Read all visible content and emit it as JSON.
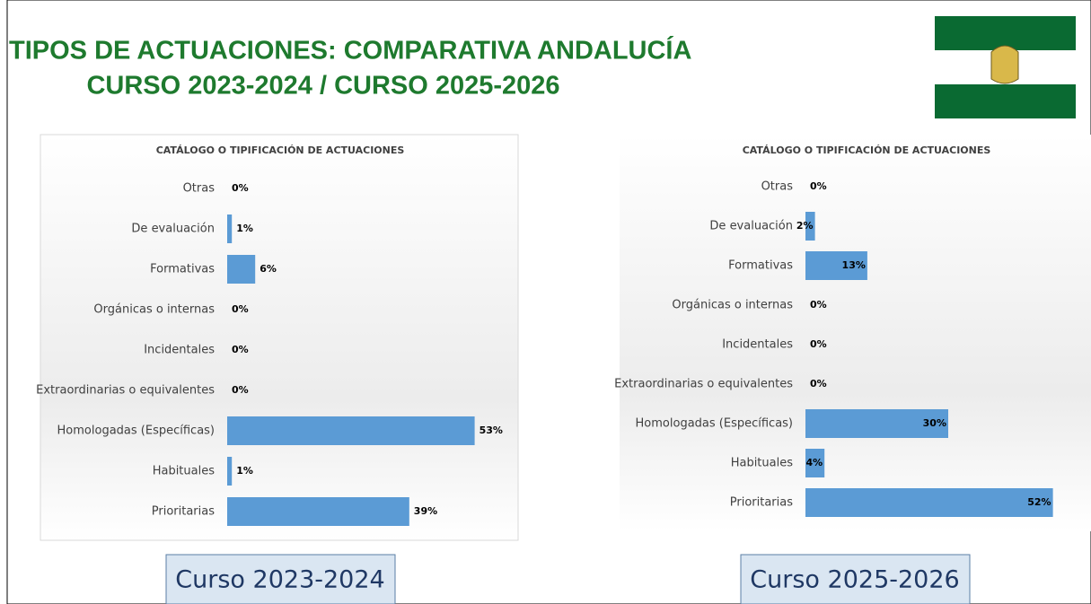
{
  "header": {
    "title": [
      "TIPOS DE ACTUACIONES: COMPARATIVA ANDALUCÍA",
      "CURSO 2023-2024 / CURSO 2025-2026"
    ]
  },
  "captions": [
    "Curso 2023-2024",
    "Curso 2025-2026"
  ],
  "chart_data": [
    {
      "type": "barh",
      "title": "CATÁLOGO O TIPIFICACIÓN DE ACTUACIONES",
      "categories": [
        "Otras",
        "De evaluación",
        "Formativas",
        "Orgánicas o internas",
        "Incidentales",
        "Extraordinarias o equivalentes",
        "Homologadas (Específicas)",
        "Habituales",
        "Prioritarias"
      ],
      "values": [
        0,
        1,
        6,
        0,
        0,
        0,
        53,
        1,
        39
      ],
      "value_labels": [
        "0%",
        "1%",
        "6%",
        "0%",
        "0%",
        "0%",
        "53%",
        "1%",
        "39%"
      ],
      "color": "#5b9bd5",
      "xlim": [
        0,
        60
      ],
      "label_position": "outside_end"
    },
    {
      "type": "barh",
      "title": "CATÁLOGO O TIPIFICACIÓN DE ACTUACIONES",
      "categories": [
        "Otras",
        "De evaluación",
        "Formativas",
        "Orgánicas o internas",
        "Incidentales",
        "Extraordinarias o equivalentes",
        "Homologadas (Específicas)",
        "Habituales",
        "Prioritarias"
      ],
      "values": [
        0,
        2,
        13,
        0,
        0,
        0,
        30,
        4,
        52
      ],
      "value_labels": [
        "0%",
        "2%",
        "13%",
        "0%",
        "0%",
        "0%",
        "30%",
        "4%",
        "52%"
      ],
      "color": "#5b9bd5",
      "xlim": [
        0,
        60
      ],
      "label_position": "inside_end"
    }
  ]
}
